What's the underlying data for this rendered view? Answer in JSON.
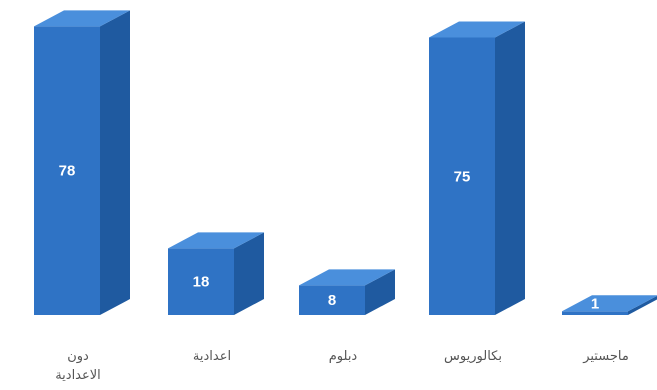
{
  "chart_data": {
    "type": "bar",
    "style": "3d-column",
    "categories": [
      "دون الاعدادية",
      "اعدادية",
      "دبلوم",
      "بكالوريوس",
      "ماجستير"
    ],
    "category_lines": [
      [
        "دون",
        "الاعدادية"
      ],
      [
        "اعدادية"
      ],
      [
        "دبلوم"
      ],
      [
        "بكالوريوس"
      ],
      [
        "ماجستير"
      ]
    ],
    "values": [
      78,
      18,
      8,
      75,
      1
    ],
    "value_labels": [
      "78",
      "18",
      "8",
      "75",
      "1"
    ],
    "ylim": [
      0,
      80
    ],
    "grid": false,
    "legend": "none",
    "colors": {
      "front": "#2f73c5",
      "top": "#4a8fdc",
      "side": "#1f5aa0"
    }
  }
}
